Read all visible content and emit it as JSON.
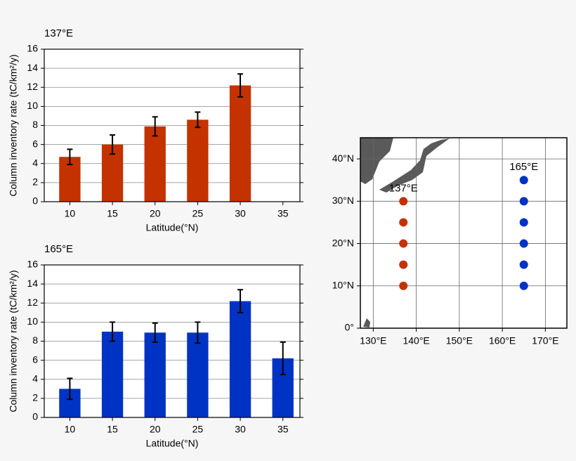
{
  "chart_data": [
    {
      "type": "bar",
      "title": "137°E",
      "color": "#c43200",
      "x": [
        10,
        15,
        20,
        25,
        30,
        35
      ],
      "values": [
        4.7,
        6.0,
        7.9,
        8.6,
        12.2,
        null
      ],
      "errors": [
        0.8,
        1.0,
        1.0,
        0.8,
        1.2,
        null
      ],
      "xlim": [
        7,
        37
      ],
      "xticks": [
        10,
        15,
        20,
        25,
        30,
        35
      ],
      "ylim": [
        0,
        16
      ],
      "yticks": [
        0,
        2,
        4,
        6,
        8,
        10,
        12,
        14,
        16
      ],
      "xlabel": "Latitude(°N)",
      "ylabel": "Column inventory rate (tC/km²/y)",
      "grid": true
    },
    {
      "type": "bar",
      "title": "165°E",
      "color": "#0033c4",
      "x": [
        10,
        15,
        20,
        25,
        30,
        35
      ],
      "values": [
        3.0,
        9.0,
        8.9,
        8.9,
        12.2,
        6.2
      ],
      "errors": [
        1.1,
        1.0,
        1.0,
        1.1,
        1.2,
        1.7
      ],
      "xlim": [
        7,
        37
      ],
      "xticks": [
        10,
        15,
        20,
        25,
        30,
        35
      ],
      "ylim": [
        0,
        16
      ],
      "yticks": [
        0,
        2,
        4,
        6,
        8,
        10,
        12,
        14,
        16
      ],
      "xlabel": "Latitude(°N)",
      "ylabel": "Column inventory rate (tC/km²/y)",
      "grid": true
    },
    {
      "type": "scatter",
      "series": [
        {
          "name": "137°E",
          "color": "#c43200",
          "x": [
            137,
            137,
            137,
            137,
            137
          ],
          "values": [
            10,
            15,
            20,
            25,
            30
          ]
        },
        {
          "name": "165°E",
          "color": "#0033c4",
          "x": [
            165,
            165,
            165,
            165,
            165,
            165
          ],
          "values": [
            10,
            15,
            20,
            25,
            30,
            35
          ]
        }
      ],
      "xlim": [
        127,
        175
      ],
      "xticks": [
        {
          "value": 130,
          "label": "130°E"
        },
        {
          "value": 140,
          "label": "140°E"
        },
        {
          "value": 150,
          "label": "150°E"
        },
        {
          "value": 160,
          "label": "160°E"
        },
        {
          "value": 170,
          "label": "170°E"
        }
      ],
      "ylim": [
        0,
        45
      ],
      "yticks": [
        {
          "value": 0,
          "label": "0°"
        },
        {
          "value": 10,
          "label": "10°N"
        },
        {
          "value": 20,
          "label": "20°N"
        },
        {
          "value": 30,
          "label": "30°N"
        },
        {
          "value": 40,
          "label": "40°N"
        }
      ],
      "grid": true
    }
  ]
}
